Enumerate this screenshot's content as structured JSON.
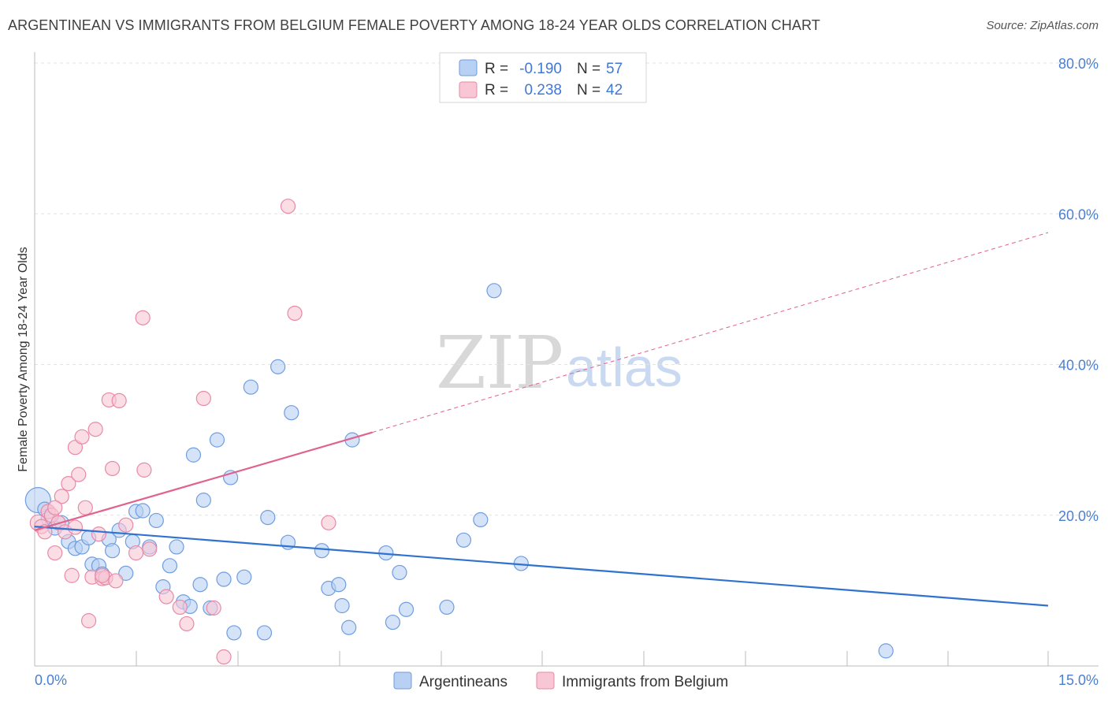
{
  "header": {
    "title": "ARGENTINEAN VS IMMIGRANTS FROM BELGIUM FEMALE POVERTY AMONG 18-24 YEAR OLDS CORRELATION CHART",
    "source": "Source: ZipAtlas.com"
  },
  "watermark": {
    "zip": "ZIP",
    "atlas": "atlas"
  },
  "legend": {
    "r_label": "R =",
    "n_label": "N =",
    "series": [
      {
        "r": "-0.190",
        "n": "57"
      },
      {
        "r": "0.238",
        "n": "42"
      }
    ]
  },
  "colors": {
    "blue_fill": "#b7d0f3",
    "blue_stroke": "#6f9de0",
    "blue_line": "#2f72d0",
    "pink_fill": "#f8c6d5",
    "pink_stroke": "#e88aa6",
    "pink_line": "#e0628e"
  },
  "chart_data": {
    "type": "scatter",
    "title": "ARGENTINEAN VS IMMIGRANTS FROM BELGIUM FEMALE POVERTY AMONG 18-24 YEAR OLDS CORRELATION CHART",
    "xlabel": "",
    "ylabel": "Female Poverty Among 18-24 Year Olds",
    "xlim": [
      0,
      15
    ],
    "ylim": [
      0,
      80
    ],
    "x_tick_labels": [
      "0.0%",
      "15.0%"
    ],
    "y_tick_values": [
      20,
      40,
      60,
      80
    ],
    "y_tick_labels": [
      "20.0%",
      "40.0%",
      "60.0%",
      "80.0%"
    ],
    "series": [
      {
        "name": "Argentineans",
        "color": "#6f9de0",
        "r": -0.19,
        "n": 57,
        "trend": {
          "x0": 0,
          "y0": 18.5,
          "x1": 15,
          "y1": 8.0
        },
        "points": [
          [
            0.05,
            22.0
          ],
          [
            0.15,
            20.8
          ],
          [
            0.2,
            19.5
          ],
          [
            0.3,
            18.3
          ],
          [
            0.4,
            19.0
          ],
          [
            0.5,
            16.5
          ],
          [
            0.6,
            15.6
          ],
          [
            0.7,
            15.8
          ],
          [
            0.8,
            17.0
          ],
          [
            0.85,
            13.5
          ],
          [
            0.95,
            13.3
          ],
          [
            1.0,
            12.2
          ],
          [
            1.1,
            16.8
          ],
          [
            1.15,
            15.3
          ],
          [
            1.25,
            18.0
          ],
          [
            1.35,
            12.3
          ],
          [
            1.45,
            16.5
          ],
          [
            1.5,
            20.5
          ],
          [
            1.6,
            20.6
          ],
          [
            1.7,
            15.8
          ],
          [
            1.8,
            19.3
          ],
          [
            1.9,
            10.5
          ],
          [
            2.0,
            13.3
          ],
          [
            2.1,
            15.8
          ],
          [
            2.2,
            8.5
          ],
          [
            2.3,
            7.9
          ],
          [
            2.35,
            28.0
          ],
          [
            2.45,
            10.8
          ],
          [
            2.5,
            22.0
          ],
          [
            2.6,
            7.7
          ],
          [
            2.7,
            30.0
          ],
          [
            2.8,
            11.5
          ],
          [
            2.9,
            25.0
          ],
          [
            2.95,
            4.4
          ],
          [
            3.1,
            11.8
          ],
          [
            3.2,
            37.0
          ],
          [
            3.4,
            4.4
          ],
          [
            3.45,
            19.7
          ],
          [
            3.6,
            39.7
          ],
          [
            3.75,
            16.4
          ],
          [
            3.8,
            33.6
          ],
          [
            4.25,
            15.3
          ],
          [
            4.35,
            10.3
          ],
          [
            4.5,
            10.8
          ],
          [
            4.55,
            8.0
          ],
          [
            4.65,
            5.1
          ],
          [
            4.7,
            30.0
          ],
          [
            5.2,
            15.0
          ],
          [
            5.3,
            5.8
          ],
          [
            5.4,
            12.4
          ],
          [
            5.5,
            7.5
          ],
          [
            6.1,
            7.8
          ],
          [
            6.35,
            16.7
          ],
          [
            6.6,
            19.4
          ],
          [
            6.8,
            49.8
          ],
          [
            7.2,
            13.6
          ],
          [
            12.6,
            2.0
          ]
        ]
      },
      {
        "name": "Immigrants from Belgium",
        "color": "#e88aa6",
        "r": 0.238,
        "n": 42,
        "trend_solid": {
          "x0": 0,
          "y0": 18.0,
          "x1": 5.0,
          "y1": 31.0
        },
        "trend_dashed": {
          "x0": 5.0,
          "y0": 31.0,
          "x1": 15,
          "y1": 57.5
        },
        "points": [
          [
            0.05,
            19.0
          ],
          [
            0.1,
            18.5
          ],
          [
            0.15,
            17.8
          ],
          [
            0.2,
            20.5
          ],
          [
            0.25,
            20.0
          ],
          [
            0.3,
            15.0
          ],
          [
            0.35,
            19.0
          ],
          [
            0.4,
            22.5
          ],
          [
            0.45,
            17.8
          ],
          [
            0.5,
            24.2
          ],
          [
            0.55,
            12.0
          ],
          [
            0.6,
            29.0
          ],
          [
            0.65,
            25.4
          ],
          [
            0.7,
            30.4
          ],
          [
            0.75,
            21.0
          ],
          [
            0.8,
            6.0
          ],
          [
            0.85,
            11.8
          ],
          [
            0.9,
            31.4
          ],
          [
            0.95,
            17.5
          ],
          [
            1.0,
            11.6
          ],
          [
            1.05,
            11.7
          ],
          [
            1.1,
            35.3
          ],
          [
            1.15,
            26.2
          ],
          [
            1.2,
            11.3
          ],
          [
            1.25,
            35.2
          ],
          [
            1.35,
            18.7
          ],
          [
            1.5,
            15.0
          ],
          [
            1.6,
            46.2
          ],
          [
            1.62,
            26.0
          ],
          [
            1.7,
            15.5
          ],
          [
            1.95,
            9.2
          ],
          [
            2.15,
            7.8
          ],
          [
            2.25,
            5.6
          ],
          [
            2.5,
            35.5
          ],
          [
            2.65,
            7.7
          ],
          [
            2.8,
            1.2
          ],
          [
            3.75,
            61.0
          ],
          [
            3.85,
            46.8
          ],
          [
            4.35,
            19.0
          ],
          [
            1.0,
            12.0
          ],
          [
            0.3,
            21.0
          ],
          [
            0.6,
            18.4
          ]
        ]
      }
    ],
    "bottom_legend": [
      "Argentineans",
      "Immigrants from Belgium"
    ]
  }
}
